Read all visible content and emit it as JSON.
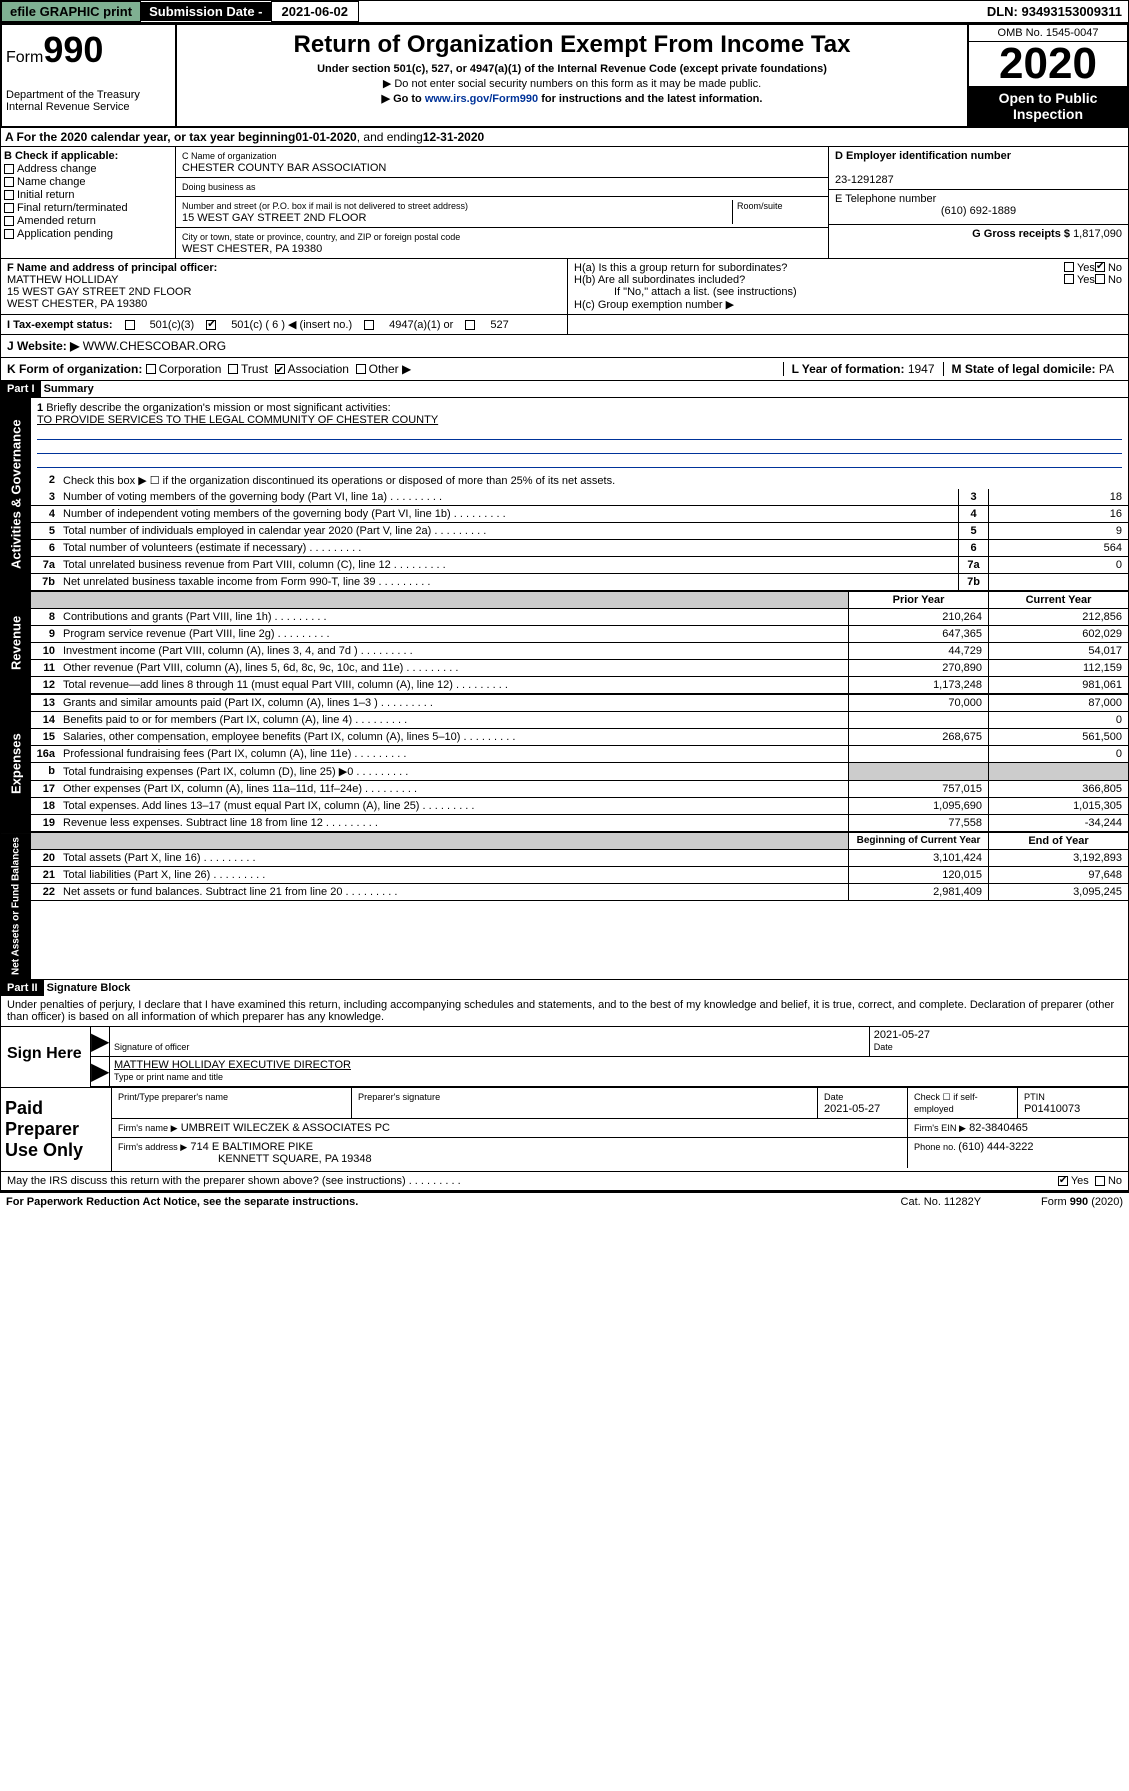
{
  "topbar": {
    "efile": "efile GRAPHIC print",
    "sub_label": "Submission Date - ",
    "sub_date": "2021-06-02",
    "dln": "DLN: 93493153009311"
  },
  "header": {
    "form_prefix": "Form",
    "form_no": "990",
    "dept": "Department of the Treasury\nInternal Revenue Service",
    "title": "Return of Organization Exempt From Income Tax",
    "sub1": "Under section 501(c), 527, or 4947(a)(1) of the Internal Revenue Code (except private foundations)",
    "sub2": "▶ Do not enter social security numbers on this form as it may be made public.",
    "sub3_pre": "▶ Go to ",
    "sub3_link": "www.irs.gov/Form990",
    "sub3_post": " for instructions and the latest information.",
    "omb": "OMB No. 1545-0047",
    "year": "2020",
    "open": "Open to Public Inspection"
  },
  "rowA": {
    "text_pre": "A   For the 2020 calendar year, or tax year beginning ",
    "begin": "01-01-2020",
    "mid": "  , and ending ",
    "end": "12-31-2020"
  },
  "boxB": {
    "label": "B Check if applicable:",
    "opts": [
      "Address change",
      "Name change",
      "Initial return",
      "Final return/terminated",
      "Amended return",
      "Application pending"
    ]
  },
  "boxC": {
    "name_lbl": "C Name of organization",
    "name": "CHESTER COUNTY BAR ASSOCIATION",
    "dba_lbl": "Doing business as",
    "addr_lbl": "Number and street (or P.O. box if mail is not delivered to street address)",
    "room_lbl": "Room/suite",
    "addr": "15 WEST GAY STREET 2ND FLOOR",
    "city_lbl": "City or town, state or province, country, and ZIP or foreign postal code",
    "city": "WEST CHESTER, PA  19380"
  },
  "boxD": {
    "lbl": "D Employer identification number",
    "val": "23-1291287"
  },
  "boxE": {
    "lbl": "E Telephone number",
    "val": "(610) 692-1889"
  },
  "boxG": {
    "lbl": "G Gross receipts $ ",
    "val": "1,817,090"
  },
  "boxF": {
    "lbl": "F  Name and address of principal officer:",
    "name": "MATTHEW HOLLIDAY",
    "addr1": "15 WEST GAY STREET 2ND FLOOR",
    "addr2": "WEST CHESTER, PA  19380"
  },
  "boxH": {
    "a": "H(a)  Is this a group return for subordinates?",
    "b": "H(b)  Are all subordinates included?",
    "note": "If \"No,\" attach a list. (see instructions)",
    "c": "H(c)  Group exemption number ▶"
  },
  "rowI": {
    "lbl": "I   Tax-exempt status:",
    "o1": "501(c)(3)",
    "o2": "501(c) ( 6 ) ◀ (insert no.)",
    "o3": "4947(a)(1) or",
    "o4": "527"
  },
  "rowJ": {
    "lbl": "J   Website: ▶ ",
    "val": "WWW.CHESCOBAR.ORG"
  },
  "rowK": {
    "lbl": "K Form of organization:",
    "o1": "Corporation",
    "o2": "Trust",
    "o3": "Association",
    "o4": "Other ▶"
  },
  "rowL": {
    "lbl": "L Year of formation: ",
    "val": "1947"
  },
  "rowM": {
    "lbl": "M State of legal domicile: ",
    "val": "PA"
  },
  "part1": {
    "hdr": "Part I",
    "title": "Summary",
    "side1": "Activities & Governance",
    "side2": "Revenue",
    "side3": "Expenses",
    "side4": "Net Assets or Fund Balances",
    "l1": "Briefly describe the organization's mission or most significant activities:",
    "mission": "TO PROVIDE SERVICES TO THE LEGAL COMMUNITY OF CHESTER COUNTY",
    "l2": "Check this box ▶ ☐  if the organization discontinued its operations or disposed of more than 25% of its net assets.",
    "lines_gov": [
      {
        "n": "3",
        "t": "Number of voting members of the governing body (Part VI, line 1a)",
        "v": "18"
      },
      {
        "n": "4",
        "t": "Number of independent voting members of the governing body (Part VI, line 1b)",
        "v": "16"
      },
      {
        "n": "5",
        "t": "Total number of individuals employed in calendar year 2020 (Part V, line 2a)",
        "v": "9"
      },
      {
        "n": "6",
        "t": "Total number of volunteers (estimate if necessary)",
        "v": "564"
      },
      {
        "n": "7a",
        "t": "Total unrelated business revenue from Part VIII, column (C), line 12",
        "v": "0"
      },
      {
        "n": "7b",
        "t": "Net unrelated business taxable income from Form 990-T, line 39",
        "v": ""
      }
    ],
    "col_prior": "Prior Year",
    "col_curr": "Current Year",
    "lines_rev": [
      {
        "n": "8",
        "t": "Contributions and grants (Part VIII, line 1h)",
        "p": "210,264",
        "c": "212,856"
      },
      {
        "n": "9",
        "t": "Program service revenue (Part VIII, line 2g)",
        "p": "647,365",
        "c": "602,029"
      },
      {
        "n": "10",
        "t": "Investment income (Part VIII, column (A), lines 3, 4, and 7d )",
        "p": "44,729",
        "c": "54,017"
      },
      {
        "n": "11",
        "t": "Other revenue (Part VIII, column (A), lines 5, 6d, 8c, 9c, 10c, and 11e)",
        "p": "270,890",
        "c": "112,159"
      },
      {
        "n": "12",
        "t": "Total revenue—add lines 8 through 11 (must equal Part VIII, column (A), line 12)",
        "p": "1,173,248",
        "c": "981,061"
      }
    ],
    "lines_exp": [
      {
        "n": "13",
        "t": "Grants and similar amounts paid (Part IX, column (A), lines 1–3 )",
        "p": "70,000",
        "c": "87,000"
      },
      {
        "n": "14",
        "t": "Benefits paid to or for members (Part IX, column (A), line 4)",
        "p": "",
        "c": "0"
      },
      {
        "n": "15",
        "t": "Salaries, other compensation, employee benefits (Part IX, column (A), lines 5–10)",
        "p": "268,675",
        "c": "561,500"
      },
      {
        "n": "16a",
        "t": "Professional fundraising fees (Part IX, column (A), line 11e)",
        "p": "",
        "c": "0"
      },
      {
        "n": "b",
        "t": "Total fundraising expenses (Part IX, column (D), line 25) ▶0",
        "p": "—gray—",
        "c": "—gray—"
      },
      {
        "n": "17",
        "t": "Other expenses (Part IX, column (A), lines 11a–11d, 11f–24e)",
        "p": "757,015",
        "c": "366,805"
      },
      {
        "n": "18",
        "t": "Total expenses. Add lines 13–17 (must equal Part IX, column (A), line 25)",
        "p": "1,095,690",
        "c": "1,015,305"
      },
      {
        "n": "19",
        "t": "Revenue less expenses. Subtract line 18 from line 12",
        "p": "77,558",
        "c": "-34,244"
      }
    ],
    "col_beg": "Beginning of Current Year",
    "col_end": "End of Year",
    "lines_net": [
      {
        "n": "20",
        "t": "Total assets (Part X, line 16)",
        "p": "3,101,424",
        "c": "3,192,893"
      },
      {
        "n": "21",
        "t": "Total liabilities (Part X, line 26)",
        "p": "120,015",
        "c": "97,648"
      },
      {
        "n": "22",
        "t": "Net assets or fund balances. Subtract line 21 from line 20",
        "p": "2,981,409",
        "c": "3,095,245"
      }
    ]
  },
  "part2": {
    "hdr": "Part II",
    "title": "Signature Block",
    "perjury": "Under penalties of perjury, I declare that I have examined this return, including accompanying schedules and statements, and to the best of my knowledge and belief, it is true, correct, and complete. Declaration of preparer (other than officer) is based on all information of which preparer has any knowledge.",
    "sign_here": "Sign Here",
    "sig_officer_lbl": "Signature of officer",
    "sig_date": "2021-05-27",
    "date_lbl": "Date",
    "officer_name": "MATTHEW HOLLIDAY  EXECUTIVE DIRECTOR",
    "officer_lbl": "Type or print name and title",
    "paid": "Paid Preparer Use Only",
    "p_name_lbl": "Print/Type preparer's name",
    "p_sig_lbl": "Preparer's signature",
    "p_date_lbl": "Date",
    "p_date": "2021-05-27",
    "p_check_lbl": "Check ☐ if self-employed",
    "ptin_lbl": "PTIN",
    "ptin": "P01410073",
    "firm_name_lbl": "Firm's name    ▶",
    "firm_name": "UMBREIT WILECZEK & ASSOCIATES PC",
    "firm_ein_lbl": "Firm's EIN ▶",
    "firm_ein": "82-3840465",
    "firm_addr_lbl": "Firm's address ▶",
    "firm_addr1": "714 E BALTIMORE PIKE",
    "firm_addr2": "KENNETT SQUARE, PA  19348",
    "phone_lbl": "Phone no. ",
    "phone": "(610) 444-3222",
    "discuss": "May the IRS discuss this return with the preparer shown above? (see instructions)",
    "yes": "Yes",
    "no": "No"
  },
  "footer": {
    "l": "For Paperwork Reduction Act Notice, see the separate instructions.",
    "c": "Cat. No. 11282Y",
    "r": "Form 990 (2020)"
  }
}
